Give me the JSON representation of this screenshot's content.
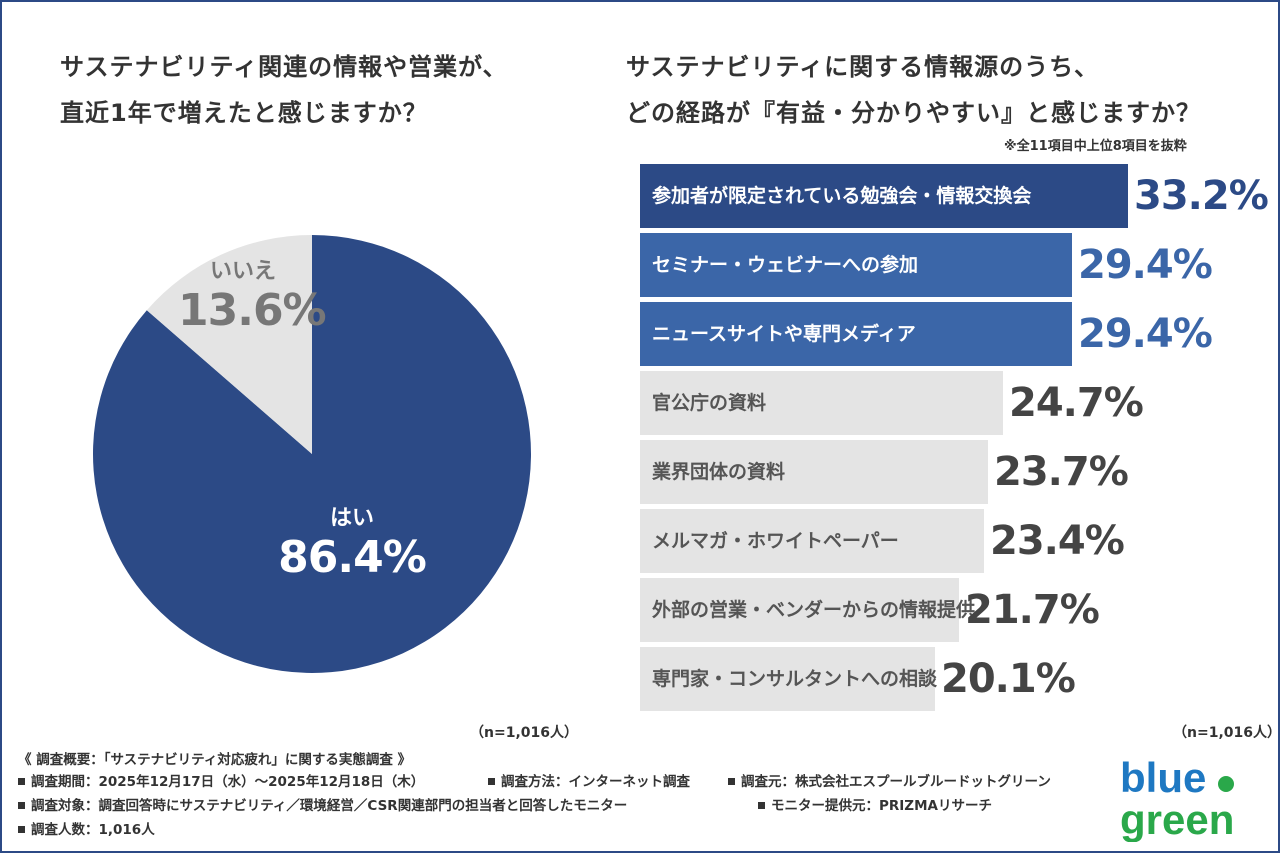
{
  "left": {
    "title_lines": [
      "サステナビリティ関連の情報や営業が、",
      "直近1年で増えたと感じますか？"
    ],
    "n_note": "（n=1,016人）"
  },
  "right": {
    "title_lines": [
      "サステナビリティに関する情報源のうち、",
      "どの経路が『有益・分かりやすい』と感じますか？"
    ],
    "note": "※全11項目中上位8項目を抜粋",
    "n_note": "（n=1,016人）"
  },
  "colors": {
    "navy": "#2c4a86",
    "blue": "#3b66a8",
    "gray_bar": "#e4e4e4",
    "pie_yes": "#2c4a86",
    "pie_no": "#e4e4e4",
    "logo_blue": "#1e78c2",
    "logo_green": "#2aa84a"
  },
  "chart_data": [
    {
      "type": "pie",
      "slices": [
        {
          "label": "はい",
          "value": 86.4,
          "value_label": "86.4%"
        },
        {
          "label": "いいえ",
          "value": 13.6,
          "value_label": "13.6%"
        }
      ]
    },
    {
      "type": "bar",
      "orientation": "horizontal",
      "categories": [
        "参加者が限定されている勉強会・情報交換会",
        "セミナー・ウェビナーへの参加",
        "ニュースサイトや専門メディア",
        "官公庁の資料",
        "業界団体の資料",
        "メルマガ・ホワイトペーパー",
        "外部の営業・ベンダーからの情報提供",
        "専門家・コンサルタントへの相談"
      ],
      "values": [
        33.2,
        29.4,
        29.4,
        24.7,
        23.7,
        23.4,
        21.7,
        20.1
      ],
      "value_labels": [
        "33.2%",
        "29.4%",
        "29.4%",
        "24.7%",
        "23.7%",
        "23.4%",
        "21.7%",
        "20.1%"
      ],
      "unit": "%"
    }
  ],
  "footer": {
    "heading": "《 調査概要：「サステナビリティ対応疲れ」に関する実態調査 》",
    "period": "調査期間：2025年12月17日（水）～2025年12月18日（木）",
    "method": "調査方法：インターネット調査",
    "source": "調査元：株式会社エスプールブルードットグリーン",
    "target": "調査対象：調査回答時にサステナビリティ／環境経営／CSR関連部門の担当者と回答したモニター",
    "provider": "モニター提供元：PRIZMAリサーチ",
    "count": "調査人数：1,016人"
  },
  "logo": {
    "line1": "blue",
    "line2": "green"
  }
}
